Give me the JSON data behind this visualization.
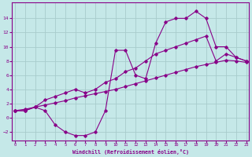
{
  "xlabel": "Windchill (Refroidissement éolien,°C)",
  "background_color": "#c5e8e8",
  "grid_color": "#a8cccc",
  "line_color": "#880088",
  "xlim": [
    -0.3,
    23.3
  ],
  "ylim": [
    -3.2,
    16.2
  ],
  "xticks": [
    0,
    1,
    2,
    3,
    4,
    5,
    6,
    7,
    8,
    9,
    10,
    11,
    12,
    13,
    14,
    15,
    16,
    17,
    18,
    19,
    20,
    21,
    22,
    23
  ],
  "yticks": [
    -2,
    0,
    2,
    4,
    6,
    8,
    10,
    12,
    14
  ],
  "line_straight_x": [
    0,
    1,
    2,
    3,
    4,
    5,
    6,
    7,
    8,
    9,
    10,
    11,
    12,
    13,
    14,
    15,
    16,
    17,
    18,
    19,
    20,
    21,
    22,
    23
  ],
  "line_straight_y": [
    1.0,
    1.2,
    1.5,
    1.8,
    2.1,
    2.4,
    2.8,
    3.1,
    3.4,
    3.7,
    4.0,
    4.4,
    4.8,
    5.2,
    5.6,
    6.0,
    6.4,
    6.8,
    7.2,
    7.5,
    7.8,
    8.1,
    8.0,
    7.8
  ],
  "line_mid_x": [
    0,
    1,
    2,
    3,
    4,
    5,
    6,
    7,
    8,
    9,
    10,
    11,
    12,
    13,
    14,
    15,
    16,
    17,
    18,
    19,
    20,
    21,
    22,
    23
  ],
  "line_mid_y": [
    1.0,
    1.0,
    1.5,
    2.5,
    3.0,
    3.5,
    4.0,
    3.5,
    4.0,
    5.0,
    5.5,
    6.5,
    7.0,
    8.0,
    9.0,
    9.5,
    10.0,
    10.5,
    11.0,
    11.5,
    8.0,
    9.0,
    8.5,
    8.0
  ],
  "line_upper_x": [
    0,
    1,
    2,
    3,
    4,
    5,
    6,
    7,
    8,
    9,
    10,
    11,
    12,
    13,
    14,
    15,
    16,
    17,
    18,
    19,
    20,
    21,
    22,
    23
  ],
  "line_upper_y": [
    1.0,
    1.0,
    1.5,
    1.0,
    -1.0,
    -2.0,
    -2.5,
    -2.5,
    -2.0,
    1.0,
    9.5,
    9.5,
    6.0,
    5.5,
    10.5,
    13.5,
    14.0,
    14.0,
    15.0,
    14.0,
    10.0,
    10.0,
    8.5,
    8.0
  ]
}
